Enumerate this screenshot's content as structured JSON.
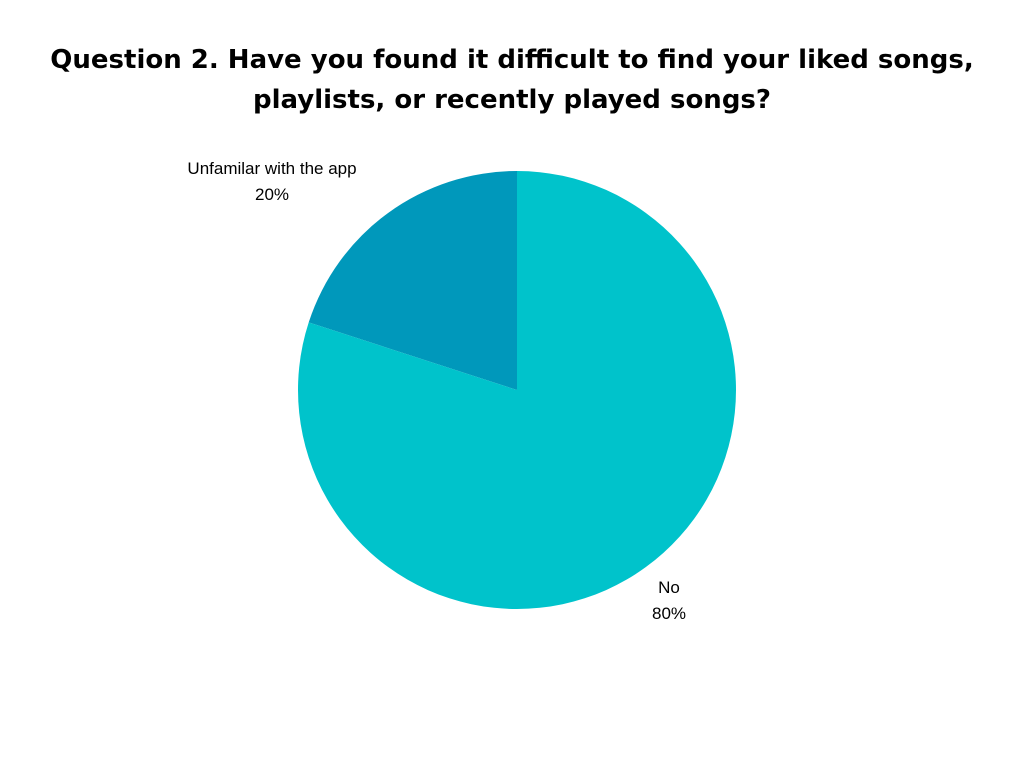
{
  "chart_data": {
    "type": "pie",
    "title_lines": [
      "Question 2. Have you found it difficult to find your liked songs,",
      "playlists, or recently played songs?"
    ],
    "slices": [
      {
        "label": "Unfamilar with the app",
        "percent_label": "20%",
        "value": 20,
        "color": "#0098BB"
      },
      {
        "label": "No",
        "percent_label": "80%",
        "value": 80,
        "color": "#00C3CB"
      }
    ],
    "start_angle_deg": 0,
    "direction": "counterclockwise"
  }
}
